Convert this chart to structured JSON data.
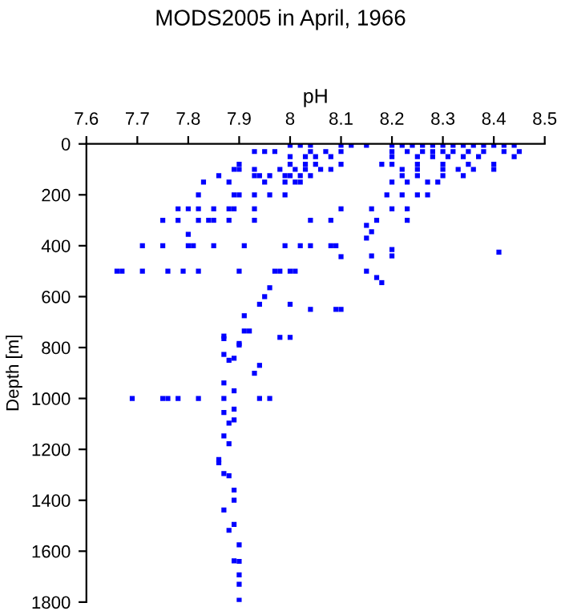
{
  "chart_data": {
    "type": "scatter",
    "title": "MODS2005 in April, 1966",
    "xlabel": "pH",
    "ylabel": "Depth [m]",
    "xlim": [
      7.6,
      8.5
    ],
    "xticks": [
      7.6,
      7.7,
      7.8,
      7.9,
      8,
      8.1,
      8.2,
      8.3,
      8.4,
      8.5
    ],
    "ylim": [
      1800,
      0
    ],
    "yticks": [
      0,
      200,
      400,
      600,
      800,
      1000,
      1200,
      1400,
      1600,
      1800
    ],
    "grid": false,
    "legend": false,
    "marker": "square",
    "series": [
      {
        "color": "#0000ff",
        "x": [
          8.0,
          8.02,
          8.04,
          8.1,
          8.12,
          8.15,
          8.2,
          8.22,
          8.24,
          8.26,
          8.28,
          8.3,
          8.32,
          8.34,
          8.36,
          8.38,
          8.4,
          8.42,
          8.44,
          7.93,
          7.95,
          7.97,
          8.04,
          8.07,
          8.1,
          8.2,
          8.23,
          8.26,
          8.28,
          8.3,
          8.32,
          8.35,
          8.38,
          8.42,
          8.45,
          8.0,
          8.03,
          8.05,
          8.08,
          8.2,
          8.25,
          8.28,
          8.31,
          8.34,
          8.37,
          8.44,
          7.9,
          8.0,
          8.03,
          8.05,
          8.1,
          8.18,
          8.2,
          8.25,
          8.3,
          8.35,
          8.4,
          7.89,
          7.9,
          7.93,
          7.98,
          8.01,
          8.03,
          8.06,
          8.08,
          8.22,
          8.25,
          8.3,
          8.33,
          8.36,
          8.4,
          7.86,
          7.93,
          7.94,
          7.96,
          7.99,
          8.0,
          8.02,
          8.04,
          8.22,
          8.25,
          8.3,
          8.34,
          7.83,
          7.88,
          7.95,
          7.99,
          8.01,
          8.02,
          8.2,
          8.23,
          8.27,
          8.29,
          7.82,
          7.89,
          7.9,
          7.93,
          7.96,
          7.99,
          8.19,
          8.22,
          8.25,
          8.27,
          7.78,
          7.8,
          7.82,
          7.85,
          7.88,
          7.89,
          7.93,
          8.1,
          8.16,
          8.2,
          8.23,
          7.75,
          7.78,
          7.82,
          7.84,
          7.85,
          7.88,
          7.93,
          8.04,
          8.08,
          8.17,
          8.23,
          8.15,
          8.16,
          7.8,
          8.15,
          7.71,
          7.75,
          7.8,
          7.81,
          7.85,
          7.91,
          7.99,
          8.02,
          8.04,
          8.08,
          8.09,
          8.2,
          8.41,
          8.16,
          8.2,
          8.1,
          7.66,
          7.67,
          7.71,
          7.76,
          7.79,
          7.82,
          7.9,
          7.97,
          7.98,
          8.0,
          8.01,
          8.15,
          8.17,
          8.18,
          7.96,
          7.95,
          8.0,
          7.94,
          8.04,
          8.09,
          8.1,
          7.91,
          7.91,
          7.92,
          7.98,
          8.0,
          7.87,
          7.9,
          7.87,
          7.9,
          7.87,
          7.89,
          7.88,
          7.94,
          7.93,
          7.87,
          7.89,
          7.69,
          7.75,
          7.76,
          7.78,
          7.82,
          7.87,
          7.94,
          7.96,
          7.89,
          7.87,
          7.89,
          7.88,
          7.87,
          7.88,
          7.86,
          7.86,
          7.87,
          7.88,
          7.89,
          7.89,
          7.87,
          7.89,
          7.88,
          7.9,
          7.89,
          7.9,
          7.9,
          7.9,
          7.9
        ],
        "values": [
          5,
          5,
          5,
          5,
          5,
          5,
          5,
          5,
          5,
          5,
          5,
          5,
          5,
          5,
          5,
          5,
          5,
          5,
          5,
          30,
          30,
          30,
          30,
          30,
          30,
          30,
          30,
          30,
          30,
          30,
          30,
          30,
          30,
          30,
          30,
          50,
          50,
          50,
          50,
          50,
          50,
          50,
          50,
          50,
          50,
          50,
          80,
          80,
          80,
          80,
          80,
          80,
          80,
          80,
          80,
          80,
          80,
          100,
          100,
          100,
          100,
          100,
          100,
          100,
          100,
          100,
          100,
          100,
          100,
          100,
          100,
          125,
          125,
          125,
          125,
          125,
          125,
          125,
          125,
          125,
          125,
          125,
          125,
          150,
          150,
          150,
          150,
          150,
          150,
          150,
          150,
          150,
          150,
          200,
          200,
          200,
          200,
          200,
          200,
          200,
          200,
          200,
          200,
          255,
          255,
          255,
          255,
          255,
          255,
          255,
          255,
          255,
          255,
          255,
          300,
          300,
          300,
          300,
          300,
          300,
          300,
          300,
          300,
          300,
          300,
          320,
          345,
          355,
          370,
          400,
          400,
          400,
          400,
          400,
          400,
          400,
          400,
          400,
          400,
          400,
          415,
          425,
          440,
          440,
          443,
          500,
          500,
          500,
          500,
          500,
          500,
          500,
          500,
          500,
          500,
          500,
          500,
          525,
          545,
          565,
          600,
          630,
          630,
          650,
          650,
          650,
          675,
          735,
          735,
          760,
          760,
          765,
          790,
          755,
          784,
          827,
          842,
          850,
          870,
          901,
          939,
          970,
          1000,
          1000,
          1000,
          1000,
          1000,
          1000,
          1000,
          1000,
          1042,
          1055,
          1084,
          1097,
          1147,
          1178,
          1240,
          1253,
          1295,
          1304,
          1360,
          1400,
          1438,
          1495,
          1518,
          1575,
          1638,
          1693,
          1730,
          1793,
          1640
        ]
      }
    ]
  }
}
